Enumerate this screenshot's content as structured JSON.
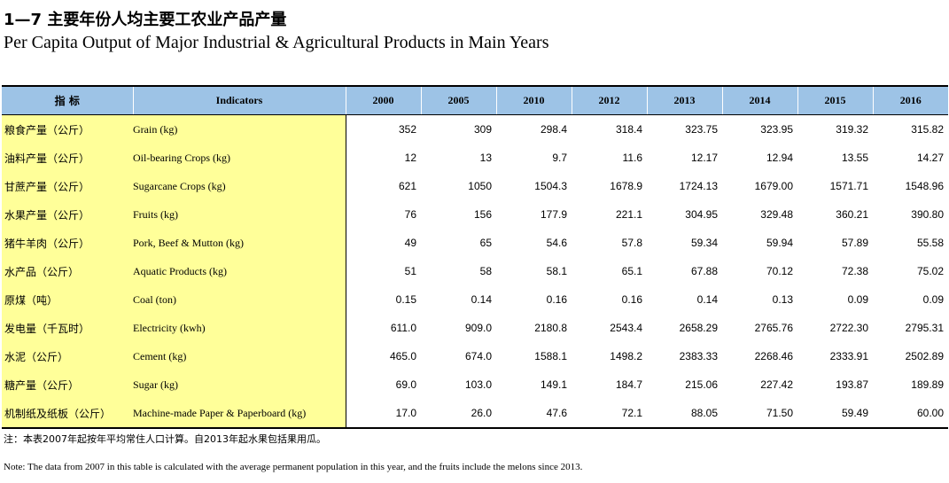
{
  "title_cn": "1—7  主要年份人均主要工农业产品产量",
  "title_en": "Per Capita Output of Major Industrial & Agricultural Products in Main Years",
  "table": {
    "header_indicator_cn": "指    标",
    "header_indicator_en": "Indicators",
    "years": [
      "2000",
      "2005",
      "2010",
      "2012",
      "2013",
      "2014",
      "2015",
      "2016"
    ],
    "rows": [
      {
        "cn": "粮食产量（公斤）",
        "en": "Grain (kg)",
        "values": [
          "352",
          "309",
          "298.4",
          "318.4",
          "323.75",
          "323.95",
          "319.32",
          "315.82"
        ]
      },
      {
        "cn": "油料产量（公斤）",
        "en": "Oil-bearing Crops (kg)",
        "values": [
          "12",
          "13",
          "9.7",
          "11.6",
          "12.17",
          "12.94",
          "13.55",
          "14.27"
        ]
      },
      {
        "cn": "甘蔗产量（公斤）",
        "en": "Sugarcane  Crops (kg)",
        "values": [
          "621",
          "1050",
          "1504.3",
          "1678.9",
          "1724.13",
          "1679.00",
          "1571.71",
          "1548.96"
        ]
      },
      {
        "cn": "水果产量（公斤）",
        "en": "Fruits (kg)",
        "values": [
          "76",
          "156",
          "177.9",
          "221.1",
          "304.95",
          "329.48",
          "360.21",
          "390.80"
        ]
      },
      {
        "cn": "猪牛羊肉（公斤）",
        "en": "Pork, Beef & Mutton (kg)",
        "values": [
          "49",
          "65",
          "54.6",
          "57.8",
          "59.34",
          "59.94",
          "57.89",
          "55.58"
        ]
      },
      {
        "cn": "水产品（公斤）",
        "en": "Aquatic Products (kg)",
        "values": [
          "51",
          "58",
          "58.1",
          "65.1",
          "67.88",
          "70.12",
          "72.38",
          "75.02"
        ]
      },
      {
        "cn": "原煤（吨）",
        "en": "Coal (ton)",
        "values": [
          "0.15",
          "0.14",
          "0.16",
          "0.16",
          "0.14",
          "0.13",
          "0.09",
          "0.09"
        ]
      },
      {
        "cn": "发电量（千瓦时）",
        "en": "Electricity (kwh)",
        "values": [
          "611.0",
          "909.0",
          "2180.8",
          "2543.4",
          "2658.29",
          "2765.76",
          "2722.30",
          "2795.31"
        ]
      },
      {
        "cn": "水泥（公斤）",
        "en": "Cement (kg)",
        "values": [
          "465.0",
          "674.0",
          "1588.1",
          "1498.2",
          "2383.33",
          "2268.46",
          "2333.91",
          "2502.89"
        ]
      },
      {
        "cn": "糖产量（公斤）",
        "en": "Sugar (kg)",
        "values": [
          "69.0",
          "103.0",
          "149.1",
          "184.7",
          "215.06",
          "227.42",
          "193.87",
          "189.89"
        ]
      },
      {
        "cn": "机制纸及纸板（公斤）",
        "en": "Machine-made Paper & Paperboard (kg)",
        "values": [
          "17.0",
          "26.0",
          "47.6",
          "72.1",
          "88.05",
          "71.50",
          "59.49",
          "60.00"
        ]
      }
    ]
  },
  "note_cn": "注：本表2007年起按年平均常住人口计算。自2013年起水果包括果用瓜。",
  "note_en": "Note: The data from 2007 in this table is calculated with the average permanent population in this year, and the fruits include the melons since 2013.",
  "colors": {
    "header_bg": "#9dc3e6",
    "indicator_bg": "#ffff99"
  }
}
